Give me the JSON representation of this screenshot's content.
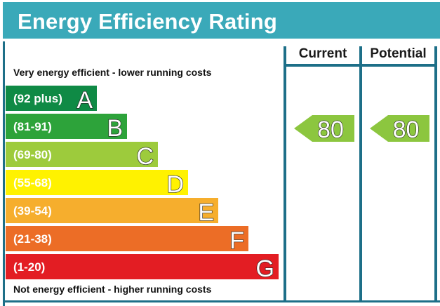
{
  "title": "Energy Efficiency Rating",
  "columns": {
    "current": "Current",
    "potential": "Potential"
  },
  "notes": {
    "top": "Very energy efficient - lower running costs",
    "bottom": "Not energy efficient - higher running costs"
  },
  "colors": {
    "header": "#3aa9b9",
    "frame": "#1d6f88",
    "band_A": "#0f8a45",
    "band_B": "#2da33a",
    "band_C": "#9dcb3c",
    "band_D": "#fff200",
    "band_E": "#f6ae2d",
    "band_F": "#ec6d26",
    "band_G": "#e31d23",
    "arrow": "#8cc63f"
  },
  "chart_data": {
    "type": "bar",
    "categories": [
      "A",
      "B",
      "C",
      "D",
      "E",
      "F",
      "G"
    ],
    "ranges": [
      "(92 plus)",
      "(81-91)",
      "(69-80)",
      "(55-68)",
      "(39-54)",
      "(21-38)",
      "(1-20)"
    ],
    "current": {
      "value": 80,
      "band": "C"
    },
    "potential": {
      "value": 80,
      "band": "C"
    }
  }
}
